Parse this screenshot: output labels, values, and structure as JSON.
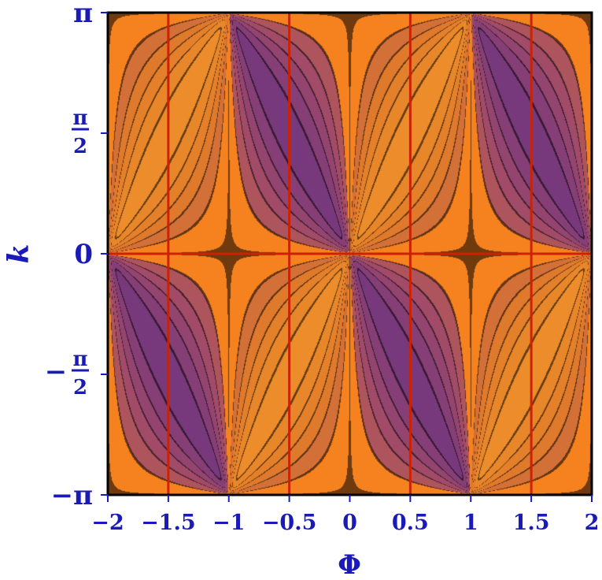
{
  "chart_data": {
    "type": "heatmap",
    "subtype": "contour-density",
    "title": "",
    "xlabel": "Φ",
    "ylabel": "k",
    "xlim": [
      -2,
      2
    ],
    "ylim": [
      -3.14159,
      3.14159
    ],
    "x_ticks": [
      {
        "value": -2,
        "label": "−2"
      },
      {
        "value": -1.5,
        "label": "−1.5"
      },
      {
        "value": -1,
        "label": "−1"
      },
      {
        "value": -0.5,
        "label": "−0.5"
      },
      {
        "value": 0,
        "label": "0"
      },
      {
        "value": 0.5,
        "label": "0.5"
      },
      {
        "value": 1,
        "label": "1"
      },
      {
        "value": 1.5,
        "label": "1.5"
      },
      {
        "value": 2,
        "label": "2"
      }
    ],
    "y_ticks": [
      {
        "value": 3.14159,
        "label": "π",
        "kind": "plain"
      },
      {
        "value": 1.5708,
        "label": "π",
        "denominator": "2",
        "kind": "frac"
      },
      {
        "value": 0,
        "label": "0",
        "kind": "plain"
      },
      {
        "value": -1.5708,
        "label": "π",
        "denominator": "2",
        "sign": "−",
        "kind": "frac"
      },
      {
        "value": -3.14159,
        "label": "−π",
        "kind": "plain"
      }
    ],
    "zero_lines_phi": [
      -1.5,
      -0.5,
      0.5,
      1.5
    ],
    "zero_lines_k": [
      0
    ],
    "contour_levels": 36,
    "grid": false,
    "colormap": [
      "#000000",
      "#2a1240",
      "#5a2d8a",
      "#a04a6a",
      "#e07a2a",
      "#f59a2a",
      "#fbe08a",
      "#fffbe8"
    ],
    "zero_level_color": "#f5821f",
    "zero_line_color": "#cc2200",
    "tick_color": "#1a1ab8"
  }
}
